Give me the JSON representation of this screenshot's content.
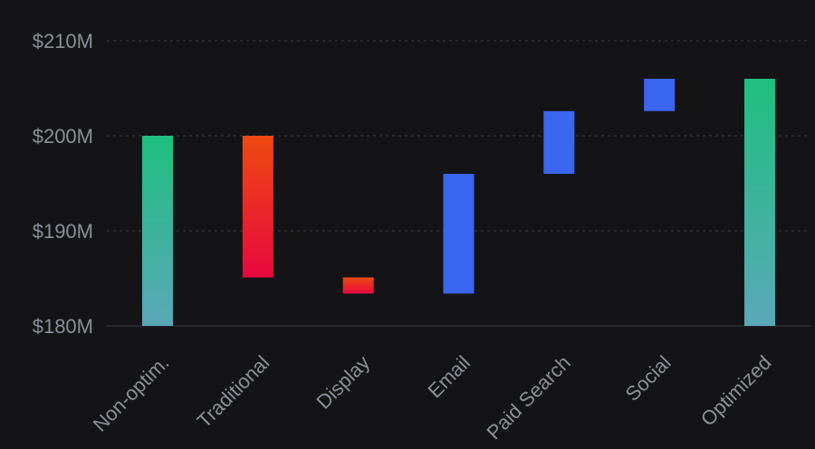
{
  "chart_data": {
    "type": "bar",
    "subtype": "waterfall",
    "title": "",
    "xlabel": "",
    "ylabel": "",
    "ylim": [
      180,
      210
    ],
    "y_ticks": [
      {
        "value": 180,
        "label": "$180M"
      },
      {
        "value": 190,
        "label": "$190M"
      },
      {
        "value": 200,
        "label": "$200M"
      },
      {
        "value": 210,
        "label": "$210M"
      }
    ],
    "grid": true,
    "categories": [
      "Non-optim.",
      "Traditional",
      "Display",
      "Email",
      "Paid Search",
      "Social",
      "Optimized"
    ],
    "bars": [
      {
        "category": "Non-optim.",
        "kind": "total",
        "start": 180,
        "end": 200.0
      },
      {
        "category": "Traditional",
        "kind": "decrease",
        "start": 200.0,
        "end": 185.1
      },
      {
        "category": "Display",
        "kind": "decrease",
        "start": 185.1,
        "end": 183.4
      },
      {
        "category": "Email",
        "kind": "increase",
        "start": 183.4,
        "end": 196.0
      },
      {
        "category": "Paid Search",
        "kind": "increase",
        "start": 196.0,
        "end": 202.6
      },
      {
        "category": "Social",
        "kind": "increase",
        "start": 202.6,
        "end": 206.0
      },
      {
        "category": "Optimized",
        "kind": "total",
        "start": 180,
        "end": 206.0
      }
    ],
    "colors": {
      "total_top": "#1fbf7f",
      "total_bottom": "#5aa8b8",
      "decrease_top": "#ee4a10",
      "decrease_bottom": "#e8083f",
      "increase": "#3a66f0"
    }
  }
}
